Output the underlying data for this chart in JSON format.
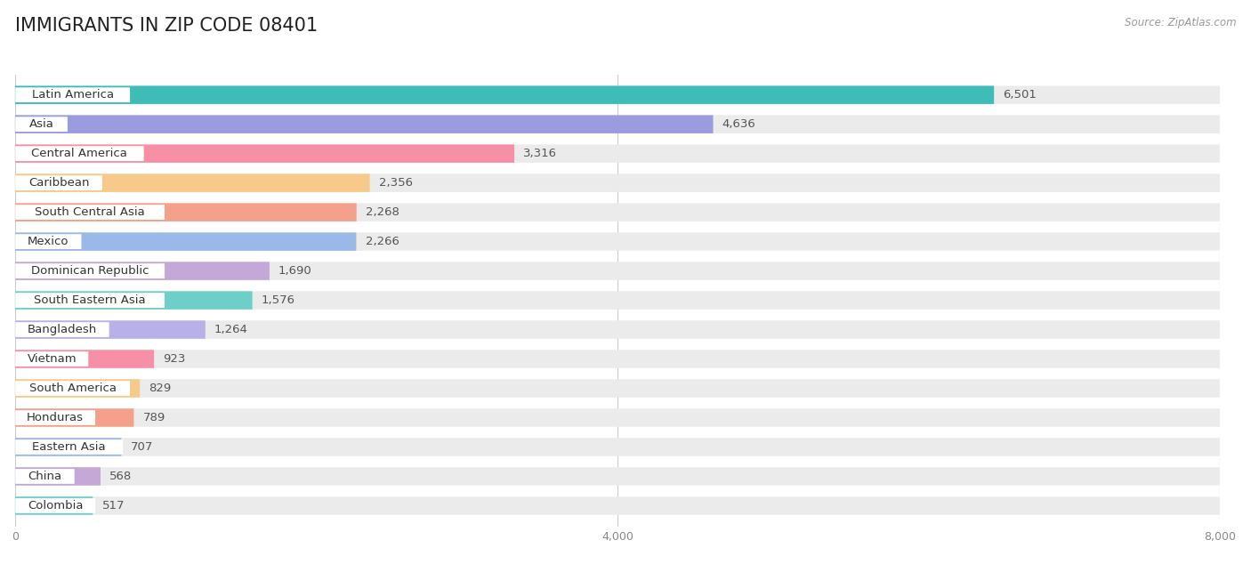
{
  "title": "IMMIGRANTS IN ZIP CODE 08401",
  "source": "Source: ZipAtlas.com",
  "categories": [
    "Latin America",
    "Asia",
    "Central America",
    "Caribbean",
    "South Central Asia",
    "Mexico",
    "Dominican Republic",
    "South Eastern Asia",
    "Bangladesh",
    "Vietnam",
    "South America",
    "Honduras",
    "Eastern Asia",
    "China",
    "Colombia"
  ],
  "values": [
    6501,
    4636,
    3316,
    2356,
    2268,
    2266,
    1690,
    1576,
    1264,
    923,
    829,
    789,
    707,
    568,
    517
  ],
  "bar_colors": [
    "#3dbcb8",
    "#9b9be0",
    "#f78fa7",
    "#f7c98a",
    "#f5a08a",
    "#9ab8e8",
    "#c4a8d8",
    "#6ecec8",
    "#b8b0e8",
    "#f78fa7",
    "#f7c98a",
    "#f5a08a",
    "#9ab8e8",
    "#c4a8d8",
    "#6ecec8"
  ],
  "xlim": [
    0,
    8000
  ],
  "xticks": [
    0,
    4000,
    8000
  ],
  "background_color": "#ffffff",
  "bar_background_color": "#ebebeb",
  "title_fontsize": 15,
  "label_fontsize": 9.5,
  "value_fontsize": 9.5
}
